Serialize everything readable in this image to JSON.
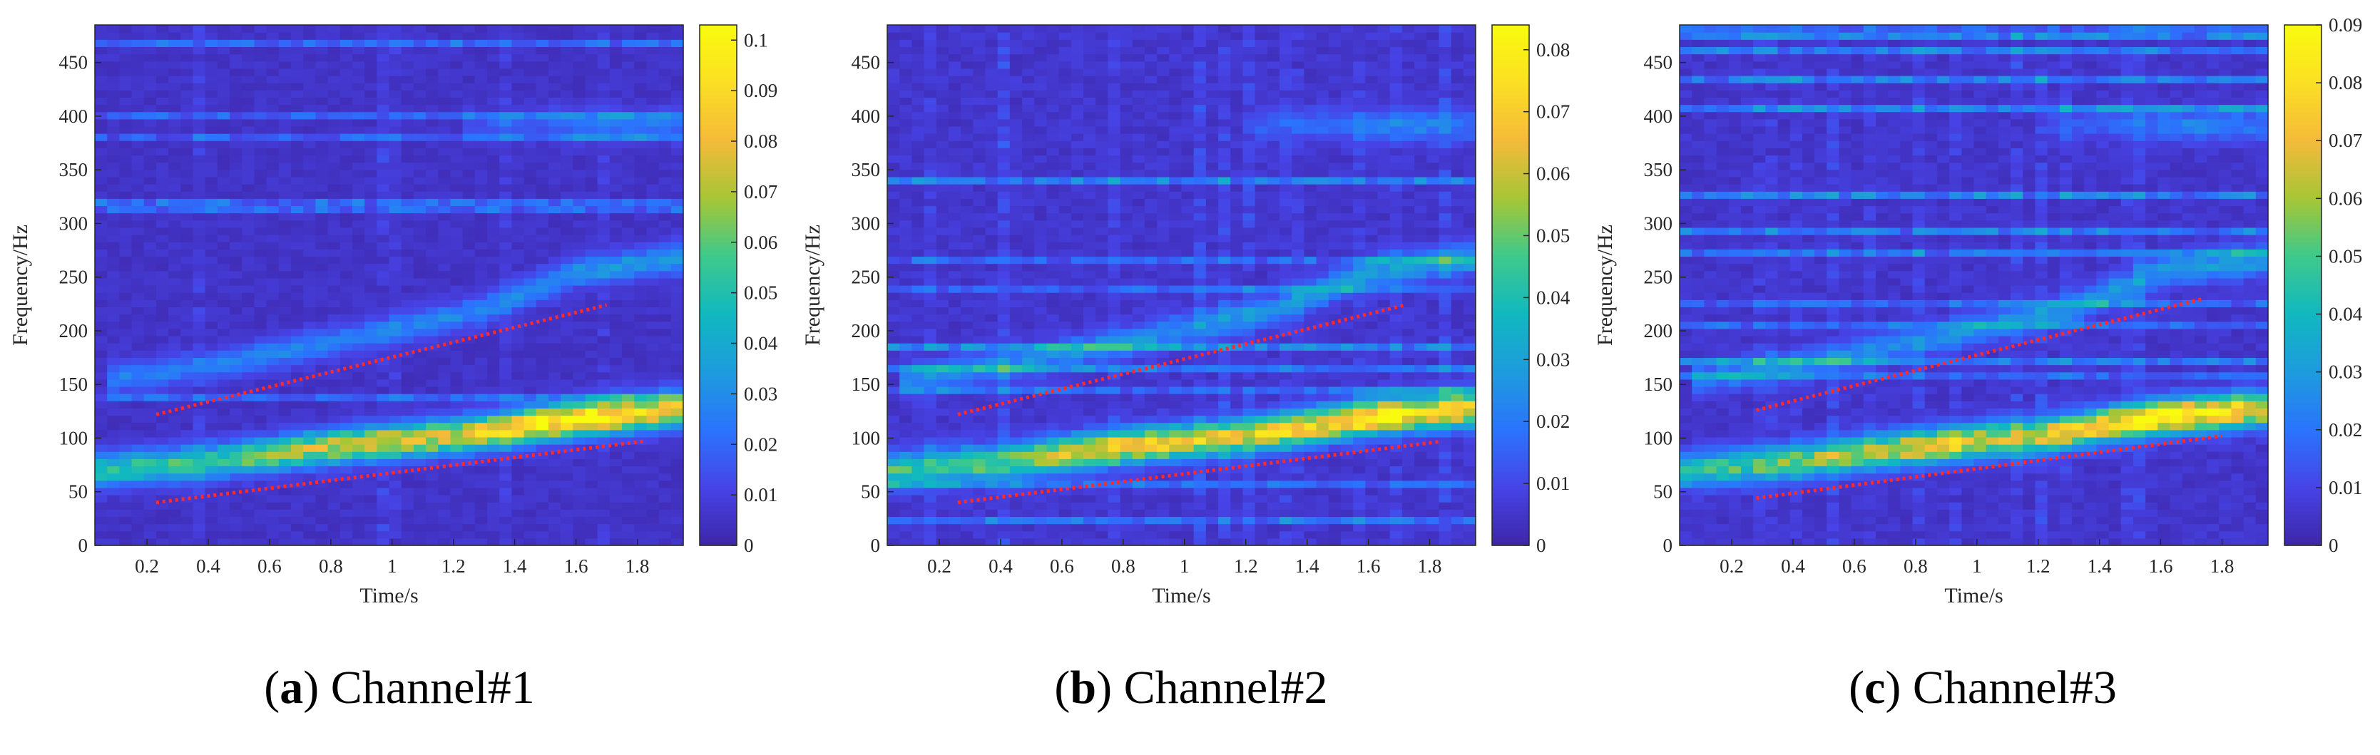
{
  "figure": {
    "panels": [
      {
        "label_letter": "a",
        "caption": "Channel#1"
      },
      {
        "label_letter": "b",
        "caption": "Channel#2"
      },
      {
        "label_letter": "c",
        "caption": "Channel#3"
      }
    ]
  },
  "colors": {
    "colormap": [
      "#3e26a8",
      "#4743e6",
      "#2b73fd",
      "#1e9bdd",
      "#10b8c0",
      "#3ec98c",
      "#a6c636",
      "#f4ba3a",
      "#fbdf24",
      "#f9fb0e"
    ],
    "trend_line": "#ff2a2a"
  },
  "chart_data": [
    {
      "type": "heatmap",
      "title": "",
      "xlabel": "Time/s",
      "ylabel": "Frequency/Hz",
      "xlim": [
        0.03,
        1.95
      ],
      "ylim": [
        0,
        485
      ],
      "xticks": [
        0.2,
        0.4,
        0.6,
        0.8,
        1,
        1.2,
        1.4,
        1.6,
        1.8
      ],
      "yticks": [
        0,
        50,
        100,
        150,
        200,
        250,
        300,
        350,
        400,
        450
      ],
      "colorbar": {
        "min": 0,
        "max": 0.103,
        "ticks": [
          0,
          0.01,
          0.02,
          0.03,
          0.04,
          0.05,
          0.06,
          0.07,
          0.08,
          0.09,
          0.1
        ]
      },
      "ridges": [
        {
          "x": [
            0.05,
            0.4,
            0.8,
            1.2,
            1.6,
            1.95
          ],
          "y": [
            70,
            78,
            92,
            102,
            118,
            128
          ],
          "intensity": [
            0.045,
            0.05,
            0.07,
            0.075,
            0.1,
            0.08
          ]
        },
        {
          "x": [
            0.1,
            0.5,
            0.9,
            1.3,
            1.6,
            1.95
          ],
          "y": [
            155,
            172,
            195,
            220,
            255,
            268
          ],
          "intensity": [
            0.02,
            0.022,
            0.022,
            0.023,
            0.026,
            0.028
          ]
        },
        {
          "x": [
            1.3,
            1.5,
            1.7,
            1.95
          ],
          "y": [
            392,
            393,
            392,
            392
          ],
          "intensity": [
            0.01,
            0.014,
            0.022,
            0.016
          ]
        }
      ],
      "trend_lines": [
        {
          "x": [
            0.23,
            1.7
          ],
          "y": [
            122,
            224
          ]
        },
        {
          "x": [
            0.23,
            1.82
          ],
          "y": [
            40,
            97
          ]
        }
      ]
    },
    {
      "type": "heatmap",
      "title": "",
      "xlabel": "Time/s",
      "ylabel": "Frequency/Hz",
      "xlim": [
        0.03,
        1.95
      ],
      "ylim": [
        0,
        485
      ],
      "xticks": [
        0.2,
        0.4,
        0.6,
        0.8,
        1,
        1.2,
        1.4,
        1.6,
        1.8
      ],
      "yticks": [
        0,
        50,
        100,
        150,
        200,
        250,
        300,
        350,
        400,
        450
      ],
      "colorbar": {
        "min": 0,
        "max": 0.084,
        "ticks": [
          0,
          0.01,
          0.02,
          0.03,
          0.04,
          0.05,
          0.06,
          0.07,
          0.08
        ]
      },
      "ridges": [
        {
          "x": [
            0.05,
            0.4,
            0.8,
            1.2,
            1.6,
            1.95
          ],
          "y": [
            70,
            78,
            92,
            102,
            120,
            128
          ],
          "intensity": [
            0.04,
            0.045,
            0.068,
            0.06,
            0.078,
            0.065
          ]
        },
        {
          "x": [
            0.1,
            0.5,
            0.9,
            1.3,
            1.6,
            1.95
          ],
          "y": [
            155,
            172,
            195,
            220,
            255,
            268
          ],
          "intensity": [
            0.018,
            0.02,
            0.02,
            0.021,
            0.024,
            0.026
          ]
        },
        {
          "x": [
            1.3,
            1.5,
            1.7,
            1.95
          ],
          "y": [
            392,
            393,
            392,
            392
          ],
          "intensity": [
            0.009,
            0.013,
            0.02,
            0.014
          ]
        }
      ],
      "trend_lines": [
        {
          "x": [
            0.26,
            1.72
          ],
          "y": [
            122,
            224
          ]
        },
        {
          "x": [
            0.26,
            1.84
          ],
          "y": [
            40,
            97
          ]
        }
      ]
    },
    {
      "type": "heatmap",
      "title": "",
      "xlabel": "Time/s",
      "ylabel": "Frequency/Hz",
      "xlim": [
        0.03,
        1.95
      ],
      "ylim": [
        0,
        485
      ],
      "xticks": [
        0.2,
        0.4,
        0.6,
        0.8,
        1,
        1.2,
        1.4,
        1.6,
        1.8
      ],
      "yticks": [
        0,
        50,
        100,
        150,
        200,
        250,
        300,
        350,
        400,
        450
      ],
      "colorbar": {
        "min": 0,
        "max": 0.09,
        "ticks": [
          0,
          0.01,
          0.02,
          0.03,
          0.04,
          0.05,
          0.06,
          0.07,
          0.08,
          0.09
        ]
      },
      "ridges": [
        {
          "x": [
            0.05,
            0.4,
            0.8,
            1.2,
            1.6,
            1.95
          ],
          "y": [
            70,
            78,
            92,
            102,
            120,
            128
          ],
          "intensity": [
            0.042,
            0.048,
            0.066,
            0.064,
            0.085,
            0.07
          ]
        },
        {
          "x": [
            0.1,
            0.5,
            0.9,
            1.3,
            1.6,
            1.95
          ],
          "y": [
            155,
            172,
            195,
            220,
            255,
            268
          ],
          "intensity": [
            0.019,
            0.021,
            0.021,
            0.022,
            0.025,
            0.027
          ]
        },
        {
          "x": [
            1.3,
            1.5,
            1.7,
            1.95
          ],
          "y": [
            392,
            393,
            392,
            392
          ],
          "intensity": [
            0.009,
            0.013,
            0.02,
            0.015
          ]
        }
      ],
      "trend_lines": [
        {
          "x": [
            0.28,
            1.74
          ],
          "y": [
            126,
            230
          ]
        },
        {
          "x": [
            0.28,
            1.8
          ],
          "y": [
            44,
            102
          ]
        }
      ]
    }
  ]
}
